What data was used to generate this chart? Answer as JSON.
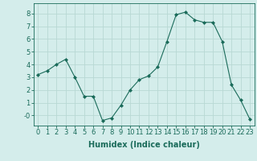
{
  "x": [
    0,
    1,
    2,
    3,
    4,
    5,
    6,
    7,
    8,
    9,
    10,
    11,
    12,
    13,
    14,
    15,
    16,
    17,
    18,
    19,
    20,
    21,
    22,
    23
  ],
  "y": [
    3.2,
    3.5,
    4.0,
    4.4,
    3.0,
    1.5,
    1.5,
    -0.4,
    -0.2,
    0.8,
    2.0,
    2.8,
    3.1,
    3.8,
    5.8,
    7.9,
    8.1,
    7.5,
    7.3,
    7.3,
    5.8,
    2.4,
    1.2,
    -0.3
  ],
  "line_color": "#1a6b5a",
  "marker": "D",
  "marker_size": 2.0,
  "bg_color": "#d4edeb",
  "grid_color": "#b8d8d4",
  "xlabel": "Humidex (Indice chaleur)",
  "xlabel_fontsize": 7,
  "tick_fontsize": 6,
  "ylim": [
    -0.8,
    8.8
  ],
  "xlim": [
    -0.5,
    23.5
  ],
  "yticks": [
    0,
    1,
    2,
    3,
    4,
    5,
    6,
    7,
    8
  ],
  "ytick_labels": [
    "-0",
    "1",
    "2",
    "3",
    "4",
    "5",
    "6",
    "7",
    "8"
  ],
  "xticks": [
    0,
    1,
    2,
    3,
    4,
    5,
    6,
    7,
    8,
    9,
    10,
    11,
    12,
    13,
    14,
    15,
    16,
    17,
    18,
    19,
    20,
    21,
    22,
    23
  ]
}
